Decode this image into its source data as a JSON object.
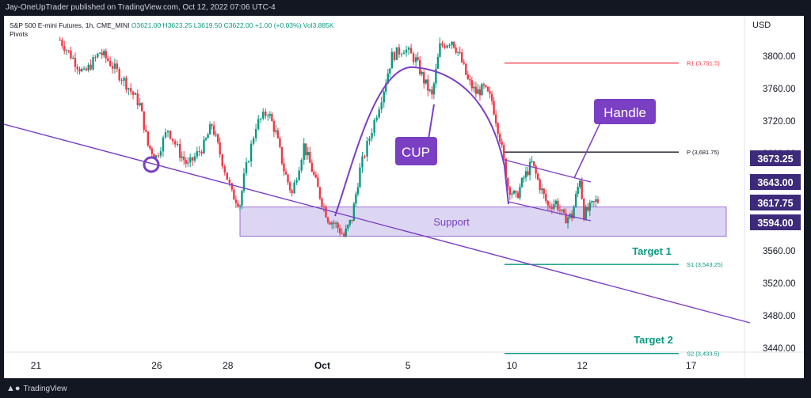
{
  "header": {
    "publisher_line": "Jay-OneUpTrader published on TradingView.com, Oct 12, 2022 07:06 UTC-4"
  },
  "legend": {
    "symbol": "S&P 500 E-mini Futures, 1h, CME_MINI",
    "ohlc": "O3621.00 H3623.25 L3619.50 C3622.00 +1.00 (+0.03%) Vol3.885K",
    "indicator": "Pivots"
  },
  "footer": {
    "brand": "TradingView"
  },
  "colors": {
    "up": "#089981",
    "down": "#f23645",
    "purple": "#7b3fc4",
    "support_fill": "#d9d2f2",
    "r1": "#f23645",
    "pivot": "#131722",
    "s": "#089981"
  },
  "chart_data": {
    "type": "candlestick",
    "currency": "USD",
    "ylim": [
      3410,
      3840
    ],
    "y_ticks": [
      3440,
      3480,
      3520,
      3560,
      3600,
      3640,
      3680,
      3720,
      3760,
      3800
    ],
    "y_tick_labels": [
      "3440.00",
      "3480.00",
      "3520.00",
      "3560.00",
      "3600.00",
      "3640.00",
      "3680.00",
      "3720.00",
      "3760.00",
      "3800.00"
    ],
    "x_ticks": [
      {
        "label": "21",
        "x": 0.04
      },
      {
        "label": "26",
        "x": 0.191
      },
      {
        "label": "28",
        "x": 0.28
      },
      {
        "label": "Oct",
        "x": 0.398
      },
      {
        "label": "5",
        "x": 0.505
      },
      {
        "label": "10",
        "x": 0.635
      },
      {
        "label": "12",
        "x": 0.723
      },
      {
        "label": "17",
        "x": 0.859
      }
    ],
    "price_path": [
      [
        0.07,
        3820
      ],
      [
        0.1,
        3778
      ],
      [
        0.12,
        3805
      ],
      [
        0.13,
        3795
      ],
      [
        0.15,
        3770
      ],
      [
        0.17,
        3740
      ],
      [
        0.18,
        3690
      ],
      [
        0.19,
        3676
      ],
      [
        0.205,
        3710
      ],
      [
        0.22,
        3680
      ],
      [
        0.23,
        3665
      ],
      [
        0.25,
        3690
      ],
      [
        0.26,
        3716
      ],
      [
        0.27,
        3680
      ],
      [
        0.285,
        3630
      ],
      [
        0.295,
        3618
      ],
      [
        0.3,
        3650
      ],
      [
        0.315,
        3715
      ],
      [
        0.33,
        3732
      ],
      [
        0.34,
        3705
      ],
      [
        0.35,
        3660
      ],
      [
        0.36,
        3630
      ],
      [
        0.375,
        3690
      ],
      [
        0.385,
        3660
      ],
      [
        0.395,
        3628
      ],
      [
        0.405,
        3600
      ],
      [
        0.415,
        3592
      ],
      [
        0.425,
        3578
      ],
      [
        0.435,
        3600
      ],
      [
        0.445,
        3660
      ],
      [
        0.46,
        3710
      ],
      [
        0.475,
        3760
      ],
      [
        0.485,
        3800
      ],
      [
        0.5,
        3810
      ],
      [
        0.515,
        3795
      ],
      [
        0.525,
        3770
      ],
      [
        0.535,
        3750
      ],
      [
        0.545,
        3812
      ],
      [
        0.56,
        3820
      ],
      [
        0.57,
        3800
      ],
      [
        0.58,
        3770
      ],
      [
        0.59,
        3755
      ],
      [
        0.6,
        3760
      ],
      [
        0.61,
        3745
      ],
      [
        0.62,
        3700
      ],
      [
        0.63,
        3640
      ],
      [
        0.64,
        3625
      ],
      [
        0.65,
        3650
      ],
      [
        0.66,
        3668
      ],
      [
        0.67,
        3640
      ],
      [
        0.68,
        3615
      ],
      [
        0.69,
        3620
      ],
      [
        0.7,
        3600
      ],
      [
        0.71,
        3603
      ],
      [
        0.72,
        3650
      ],
      [
        0.725,
        3605
      ],
      [
        0.73,
        3610
      ],
      [
        0.74,
        3621
      ],
      [
        0.745,
        3622
      ]
    ],
    "series": [
      {
        "name": "R1",
        "value": 3791.5,
        "label": "R1 (3,791.5)"
      },
      {
        "name": "P",
        "value": 3681.75,
        "label": "P (3,681.75)"
      },
      {
        "name": "S1",
        "value": 3543.25,
        "label": "S1 (3,543.25)"
      },
      {
        "name": "S2",
        "value": 3433.5,
        "label": "S2 (3,433.5)"
      }
    ],
    "price_tags": [
      {
        "label": "3673.25",
        "value": 3673.25
      },
      {
        "label": "3643.00",
        "value": 3643.0
      },
      {
        "label": "3617.75",
        "value": 3617.75
      },
      {
        "label": "3594.00",
        "value": 3594.0
      }
    ],
    "annotations": {
      "cup": "CUP",
      "handle": "Handle",
      "support": "Support",
      "target1": "Target 1",
      "target2": "Target 2"
    }
  }
}
